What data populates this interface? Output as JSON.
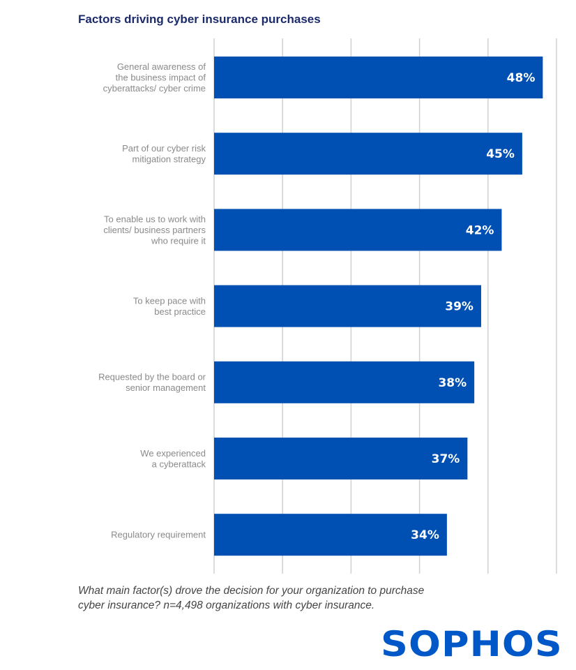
{
  "chart_data": {
    "type": "bar",
    "orientation": "horizontal",
    "title": "Factors driving cyber insurance purchases",
    "categories": [
      [
        "General awareness of",
        "the business impact of",
        "cyberattacks/ cyber crime"
      ],
      [
        "Part of our cyber risk",
        "mitigation strategy"
      ],
      [
        "To enable us to work with",
        "clients/ business partners",
        "who require it"
      ],
      [
        "To keep pace with",
        "best practice"
      ],
      [
        "Requested by the board or",
        "senior management"
      ],
      [
        "We experienced",
        "a cyberattack"
      ],
      [
        "Regulatory requirement"
      ]
    ],
    "values": [
      48,
      45,
      42,
      39,
      38,
      37,
      34
    ],
    "data_labels": [
      "48%",
      "45%",
      "42%",
      "39%",
      "38%",
      "37%",
      "34%"
    ],
    "xlim": [
      0,
      50
    ],
    "grid": true,
    "gridline_values": [
      0,
      10,
      20,
      30,
      40,
      50
    ],
    "bar_color": "#0050b4",
    "grid_color": "#cfd0d6"
  },
  "caption": {
    "line1": "What main factor(s) drove the decision for your organization to purchase",
    "line2": "cyber insurance? n=4,498 organizations with cyber insurance."
  },
  "logo": {
    "text": "SOPHOS",
    "color": "#0058c8"
  }
}
